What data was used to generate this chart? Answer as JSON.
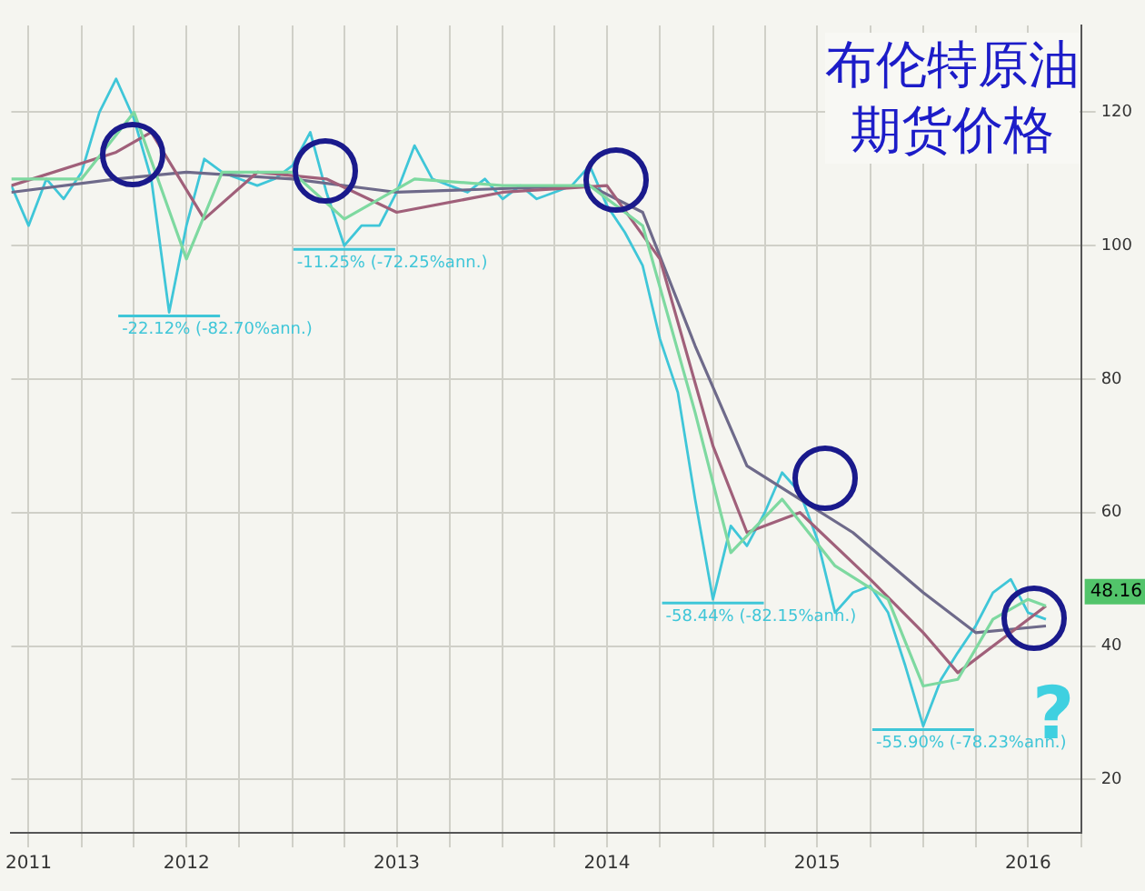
{
  "chart_data": {
    "type": "line",
    "title": "布伦特原油期货价格",
    "xlim": [
      "2011-09",
      "2016-10"
    ],
    "xticks": [
      {
        "value": "2011-10",
        "label": "2011"
      },
      {
        "value": "2012-01",
        "label": null
      },
      {
        "value": "2012-04",
        "label": null
      },
      {
        "value": "2012-07",
        "label": "2012"
      },
      {
        "value": "2012-10",
        "label": null
      },
      {
        "value": "2013-01",
        "label": null
      },
      {
        "value": "2013-04",
        "label": null
      },
      {
        "value": "2013-07",
        "label": "2013"
      },
      {
        "value": "2013-10",
        "label": null
      },
      {
        "value": "2014-01",
        "label": null
      },
      {
        "value": "2014-04",
        "label": null
      },
      {
        "value": "2014-07",
        "label": "2014"
      },
      {
        "value": "2014-10",
        "label": null
      },
      {
        "value": "2015-01",
        "label": null
      },
      {
        "value": "2015-04",
        "label": null
      },
      {
        "value": "2015-07",
        "label": "2015"
      },
      {
        "value": "2015-10",
        "label": null
      },
      {
        "value": "2016-01",
        "label": null
      },
      {
        "value": "2016-04",
        "label": null
      },
      {
        "value": "2016-07",
        "label": "2016"
      },
      {
        "value": "2016-10",
        "label": null
      }
    ],
    "ylim": [
      12,
      133
    ],
    "yticks": [
      20,
      40,
      60,
      80,
      100,
      120
    ],
    "grid": true,
    "legend": false,
    "marker": "none",
    "line_style": "solid",
    "series": [
      {
        "color": "#7ed9a0",
        "x": [
          "2011-09",
          "2012-01",
          "2012-04",
          "2012-07",
          "2012-09",
          "2013-01",
          "2013-04",
          "2013-08",
          "2014-01",
          "2014-06",
          "2014-09",
          "2014-12",
          "2015-02",
          "2015-05",
          "2015-08",
          "2015-11",
          "2016-01",
          "2016-03",
          "2016-05",
          "2016-07",
          "2016-08"
        ],
        "values": [
          110,
          110,
          120,
          98,
          111,
          111,
          104,
          110,
          109,
          109,
          103,
          75,
          54,
          62,
          52,
          47,
          34,
          35,
          44,
          47,
          46
        ]
      },
      {
        "color": "#a0607a",
        "x": [
          "2011-09",
          "2012-03",
          "2012-05",
          "2012-08",
          "2012-11",
          "2013-03",
          "2013-07",
          "2014-01",
          "2014-07",
          "2014-10",
          "2015-01",
          "2015-03",
          "2015-06",
          "2015-10",
          "2016-01",
          "2016-03",
          "2016-06",
          "2016-08"
        ],
        "values": [
          109,
          114,
          117,
          104,
          111,
          110,
          105,
          108,
          109,
          98,
          70,
          57,
          60,
          50,
          42,
          36,
          42,
          46
        ]
      },
      {
        "color": "#6e6a8a",
        "x": [
          "2011-09",
          "2012-03",
          "2012-07",
          "2013-01",
          "2013-07",
          "2014-06",
          "2014-09",
          "2014-12",
          "2015-03",
          "2015-06",
          "2015-09",
          "2016-01",
          "2016-04",
          "2016-08"
        ],
        "values": [
          108,
          110,
          111,
          110,
          108,
          109,
          105,
          85,
          67,
          62,
          57,
          48,
          42,
          43
        ]
      },
      {
        "color": "#3fc6d8",
        "x": [
          "2011-09",
          "2011-10",
          "2011-11",
          "2011-12",
          "2012-01",
          "2012-02",
          "2012-03",
          "2012-04",
          "2012-05",
          "2012-06",
          "2012-07",
          "2012-08",
          "2012-09",
          "2012-10",
          "2012-11",
          "2012-12",
          "2013-01",
          "2013-02",
          "2013-03",
          "2013-04",
          "2013-05",
          "2013-06",
          "2013-07",
          "2013-08",
          "2013-09",
          "2013-10",
          "2013-11",
          "2013-12",
          "2014-01",
          "2014-02",
          "2014-03",
          "2014-04",
          "2014-05",
          "2014-06",
          "2014-07",
          "2014-08",
          "2014-09",
          "2014-10",
          "2014-11",
          "2014-12",
          "2015-01",
          "2015-02",
          "2015-03",
          "2015-04",
          "2015-05",
          "2015-06",
          "2015-07",
          "2015-08",
          "2015-09",
          "2015-10",
          "2015-11",
          "2015-12",
          "2016-01",
          "2016-02",
          "2016-03",
          "2016-04",
          "2016-05",
          "2016-06",
          "2016-07",
          "2016-08"
        ],
        "values": [
          109,
          103,
          110,
          107,
          111,
          120,
          125,
          119,
          110,
          90,
          103,
          113,
          111,
          110,
          109,
          110,
          112,
          117,
          108,
          100,
          103,
          103,
          108,
          115,
          110,
          109,
          108,
          110,
          107,
          109,
          107,
          108,
          109,
          112,
          106,
          102,
          97,
          86,
          78,
          62,
          47,
          58,
          55,
          60,
          66,
          63,
          56,
          45,
          48,
          49,
          45,
          37,
          28,
          35,
          39,
          43,
          48,
          50,
          45,
          44
        ]
      }
    ],
    "annotations": [
      {
        "text": "-22.12% (-82.70%ann.)",
        "x": "2012-06",
        "y": 90
      },
      {
        "text": "-11.25% (-72.25%ann.)",
        "x": "2013-04",
        "y": 100
      },
      {
        "text": "-58.44% (-82.15%ann.)",
        "x": "2015-01",
        "y": 47
      },
      {
        "text": "-55.90% (-78.23%ann.)",
        "x": "2016-01",
        "y": 28
      },
      {
        "text": "48.16",
        "y": 48.16
      },
      "?"
    ]
  }
}
